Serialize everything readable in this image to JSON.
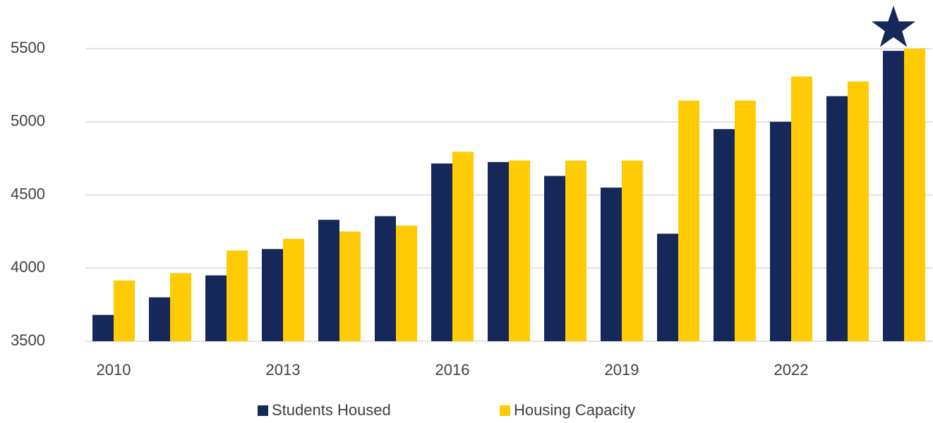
{
  "chart_data": {
    "type": "bar",
    "categories": [
      "2010",
      null,
      null,
      "2013",
      null,
      null,
      "2016",
      null,
      null,
      "2019",
      null,
      null,
      "2022",
      null,
      null
    ],
    "series": [
      {
        "name": "Students Housed",
        "color": "#16275a",
        "values": [
          3680,
          3800,
          3950,
          4130,
          4330,
          4355,
          4715,
          4725,
          4630,
          4550,
          4235,
          4950,
          5000,
          5175,
          5485
        ]
      },
      {
        "name": "Housing Capacity",
        "color": "#ffcb05",
        "values": [
          3915,
          3965,
          4120,
          4200,
          4250,
          4290,
          4795,
          4735,
          4735,
          4735,
          5145,
          5145,
          5310,
          5275,
          5500
        ]
      }
    ],
    "ylim": [
      3500,
      5500
    ],
    "yticks": [
      3500,
      4000,
      4500,
      5000,
      5500
    ],
    "grid": true,
    "legend": "bottom"
  }
}
